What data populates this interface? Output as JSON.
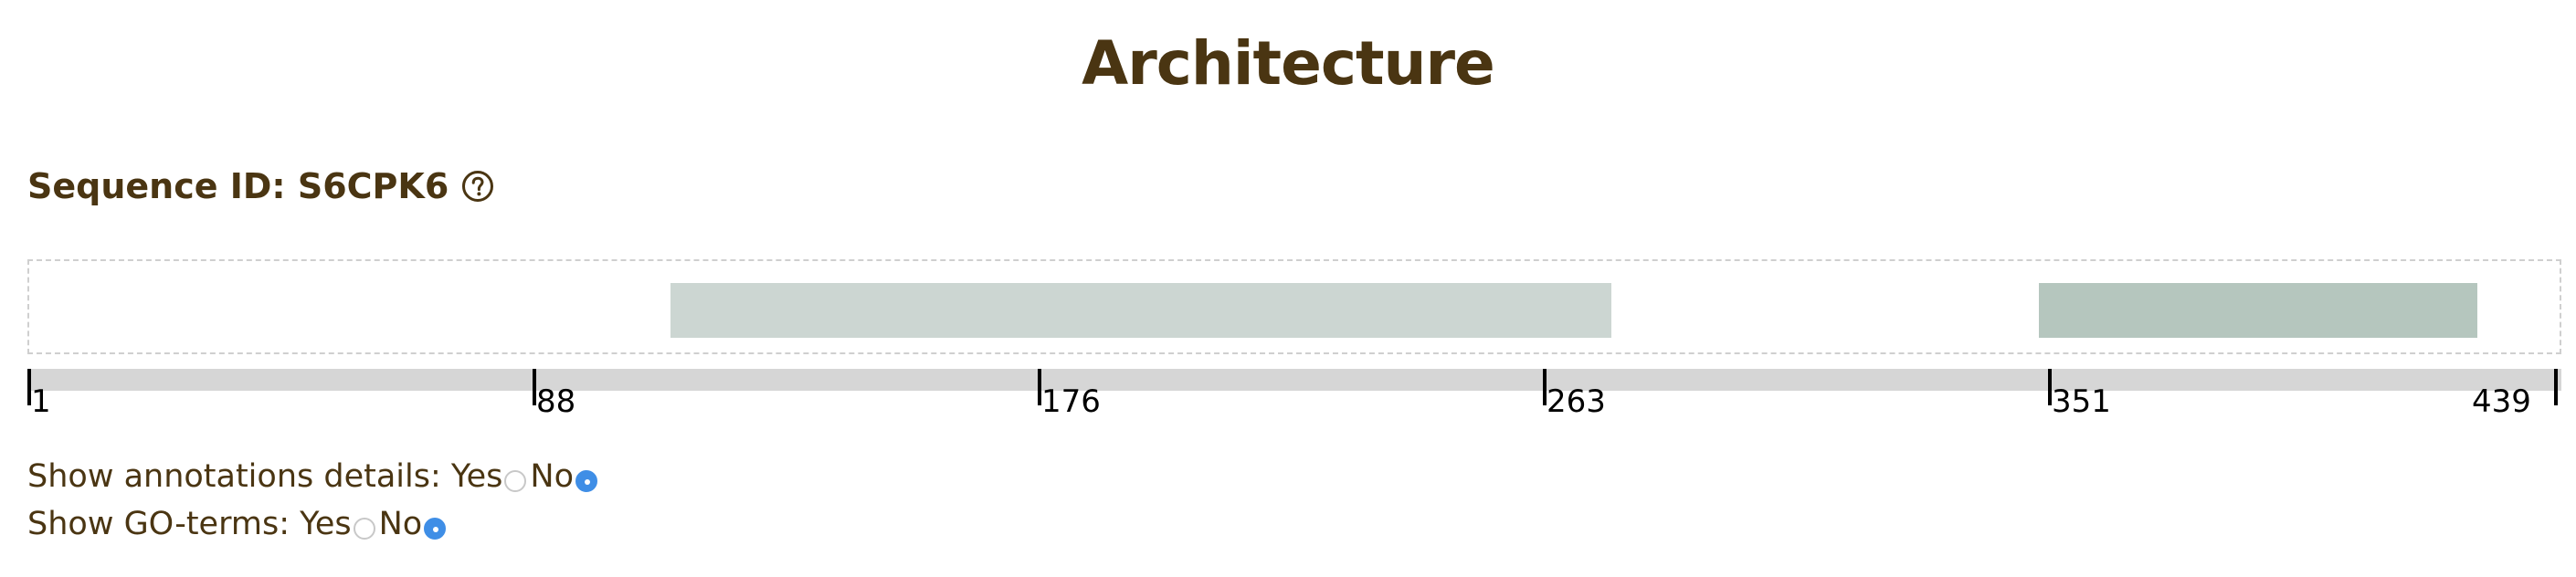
{
  "title": "Architecture",
  "sequence": {
    "label": "Sequence ID: S6CPK6",
    "help_icon": "question-circle-icon"
  },
  "domains": [
    {
      "start": 114,
      "end": 279
    },
    {
      "start": 357,
      "end": 435
    }
  ],
  "ruler": {
    "ticks": [
      "1",
      "88",
      "176",
      "263",
      "351",
      "439"
    ]
  },
  "options": {
    "annotations": {
      "label": "Show annotations details: ",
      "yes_label": "Yes",
      "no_label": "No",
      "selected": "No"
    },
    "go_terms": {
      "label": "Show GO-terms: ",
      "yes_label": "Yes",
      "no_label": "No",
      "selected": "No"
    }
  },
  "colors": {
    "heading": "#4a3512",
    "domain_1": "#ccd6d2",
    "domain_2": "#b5c6be",
    "radio_selected": "#3f8ee6"
  }
}
